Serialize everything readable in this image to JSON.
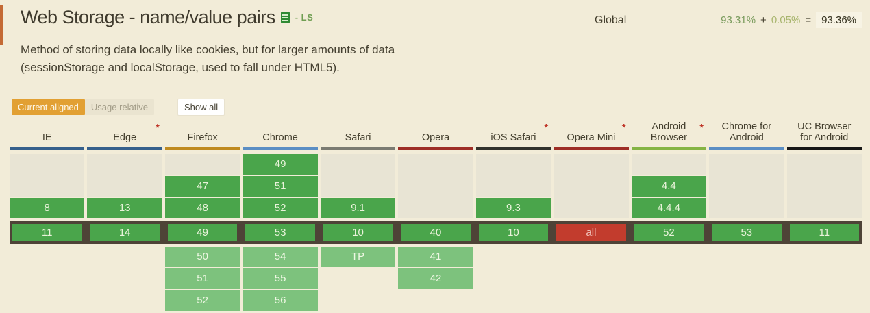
{
  "header": {
    "title": "Web Storage - name/value pairs",
    "spec_badge": "- LS",
    "usage": {
      "scope_label": "Global",
      "supported_pct": "93.31%",
      "plus": "+",
      "partial_pct": "0.05%",
      "equals": "=",
      "total_pct": "93.36%"
    }
  },
  "description": "Method of storing data locally like cookies, but for larger amounts of data (sessionStorage and localStorage, used to fall under HTML5).",
  "controls": {
    "current_aligned": "Current aligned",
    "usage_relative": "Usage relative",
    "show_all": "Show all"
  },
  "colors": {
    "supported": "#4aa54b",
    "supported_future": "#7dc27d",
    "not_supported": "#c23c2d",
    "empty_cell": "#e8e4d4",
    "current_row_border": "#4e4337",
    "accent_orange": "#e2a033",
    "page_background": "#f2ecd8"
  },
  "table": {
    "columns": [
      {
        "name": "IE",
        "asterisk": false,
        "bar_color": "#36608c",
        "past": [
          {
            "empty": 2
          },
          {
            "v": "8"
          }
        ],
        "current": {
          "v": "11",
          "type": "y"
        },
        "future": []
      },
      {
        "name": "Edge",
        "asterisk": true,
        "bar_color": "#36608c",
        "past": [
          {
            "empty": 2
          },
          {
            "v": "13"
          }
        ],
        "current": {
          "v": "14",
          "type": "y"
        },
        "future": []
      },
      {
        "name": "Firefox",
        "asterisk": false,
        "bar_color": "#bf8a1f",
        "past": [
          {
            "empty": 1
          },
          {
            "v": "47"
          },
          {
            "v": "48"
          }
        ],
        "current": {
          "v": "49",
          "type": "y"
        },
        "future": [
          "50",
          "51",
          "52"
        ]
      },
      {
        "name": "Chrome",
        "asterisk": false,
        "bar_color": "#5b8ec4",
        "past": [
          {
            "v": "49"
          },
          {
            "v": "51"
          },
          {
            "v": "52"
          }
        ],
        "current": {
          "v": "53",
          "type": "y"
        },
        "future": [
          "54",
          "55",
          "56"
        ]
      },
      {
        "name": "Safari",
        "asterisk": false,
        "bar_color": "#7b7b72",
        "past": [
          {
            "empty": 2
          },
          {
            "v": "9.1"
          }
        ],
        "current": {
          "v": "10",
          "type": "y"
        },
        "future": [
          "TP"
        ]
      },
      {
        "name": "Opera",
        "asterisk": false,
        "bar_color": "#9e2e26",
        "past": [
          {
            "empty": 3
          }
        ],
        "current": {
          "v": "40",
          "type": "y"
        },
        "future": [
          "41",
          "42"
        ]
      },
      {
        "name": "iOS Safari",
        "asterisk": true,
        "bar_color": "#32322c",
        "past": [
          {
            "empty": 2
          },
          {
            "v": "9.3"
          }
        ],
        "current": {
          "v": "10",
          "type": "y"
        },
        "future": []
      },
      {
        "name": "Opera Mini",
        "asterisk": true,
        "bar_color": "#9e2e26",
        "past": [
          {
            "empty": 3
          }
        ],
        "current": {
          "v": "all",
          "type": "n"
        },
        "future": []
      },
      {
        "name": "Android Browser",
        "asterisk": true,
        "bar_color": "#85b444",
        "past": [
          {
            "empty": 1
          },
          {
            "v": "4.4"
          },
          {
            "v": "4.4.4"
          }
        ],
        "current": {
          "v": "52",
          "type": "y"
        },
        "future": []
      },
      {
        "name": "Chrome for Android",
        "asterisk": false,
        "bar_color": "#5b8ec4",
        "past": [
          {
            "empty": 3
          }
        ],
        "current": {
          "v": "53",
          "type": "y"
        },
        "future": []
      },
      {
        "name": "UC Browser for Android",
        "asterisk": false,
        "bar_color": "#181818",
        "past": [
          {
            "empty": 3
          }
        ],
        "current": {
          "v": "11",
          "type": "y"
        },
        "future": []
      }
    ]
  }
}
